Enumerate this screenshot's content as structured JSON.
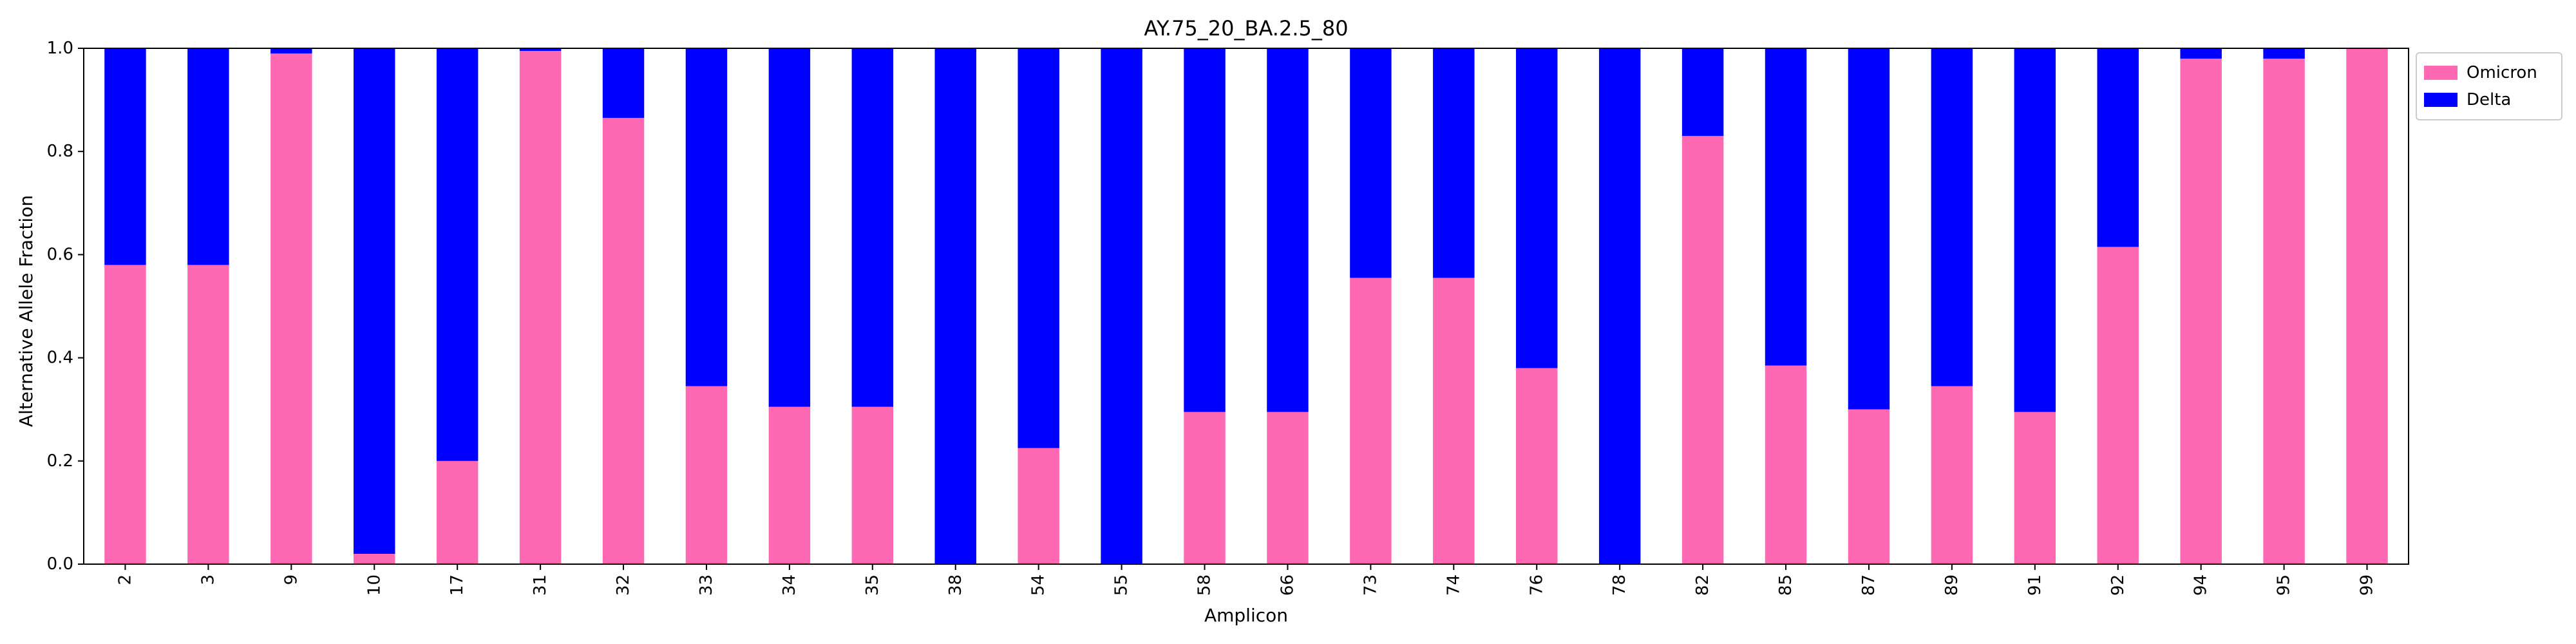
{
  "chart_data": {
    "type": "bar",
    "stacked": true,
    "title": "AY.75_20_BA.2.5_80",
    "xlabel": "Amplicon",
    "ylabel": "Alternative Allele Fraction",
    "ylim": [
      0,
      1.0
    ],
    "yticks": [
      "0.0",
      "0.2",
      "0.4",
      "0.6",
      "0.8",
      "1.0"
    ],
    "grid": false,
    "legend_position": "upper-right-outside",
    "categories": [
      "2",
      "3",
      "9",
      "10",
      "17",
      "31",
      "32",
      "33",
      "34",
      "35",
      "38",
      "54",
      "55",
      "58",
      "66",
      "73",
      "74",
      "76",
      "78",
      "82",
      "85",
      "87",
      "89",
      "91",
      "92",
      "94",
      "95",
      "99"
    ],
    "series": [
      {
        "name": "Omicron",
        "color": "#ff69b4",
        "values": [
          0.58,
          0.58,
          0.99,
          0.02,
          0.2,
          0.995,
          0.865,
          0.345,
          0.305,
          0.305,
          0.0,
          0.225,
          0.0,
          0.295,
          0.295,
          0.555,
          0.555,
          0.38,
          0.0,
          0.83,
          0.385,
          0.3,
          0.345,
          0.295,
          0.615,
          0.98,
          0.98,
          1.0
        ]
      },
      {
        "name": "Delta",
        "color": "#0000ff",
        "values": [
          0.42,
          0.42,
          0.01,
          0.98,
          0.8,
          0.005,
          0.135,
          0.655,
          0.695,
          0.695,
          1.0,
          0.775,
          1.0,
          0.705,
          0.705,
          0.445,
          0.445,
          0.62,
          1.0,
          0.17,
          0.615,
          0.7,
          0.655,
          0.705,
          0.385,
          0.02,
          0.02,
          0.0
        ]
      }
    ]
  }
}
